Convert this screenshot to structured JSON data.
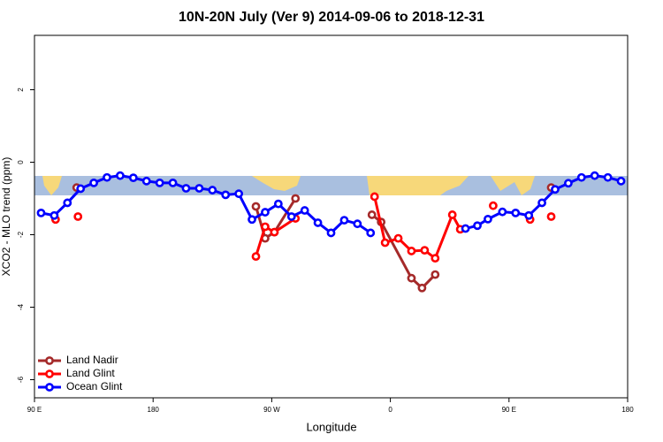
{
  "chart_data": {
    "type": "line",
    "title": "10N-20N July (Ver 9)   2014-09-06 to 2018-12-31",
    "x_label": "Longitude",
    "y_label": "XCO2 - MLO trend (ppm)",
    "xlim": [
      90,
      540
    ],
    "xticks": [
      {
        "value": 90,
        "label": "90 E"
      },
      180,
      {
        "value": 270,
        "label": "90 W"
      },
      {
        "value": 360,
        "label": "0"
      },
      {
        "value": 450,
        "label": "90 E"
      },
      180
    ],
    "ylim": [
      -6.5,
      3.5
    ],
    "yticks": [
      -6,
      -4,
      -2,
      0,
      2
    ],
    "legend": "bottom-left",
    "series": [
      {
        "name": "Land Nadir",
        "color": "#a52a2a",
        "x": [
          122,
          null,
          258,
          265,
          272,
          288,
          null,
          346,
          353,
          376,
          384,
          394,
          null,
          482
        ],
        "values": [
          -0.7,
          null,
          -1.22,
          -2.1,
          -1.93,
          -1.0,
          null,
          -1.45,
          -1.65,
          -3.2,
          -3.47,
          -3.1,
          null,
          -0.7
        ]
      },
      {
        "name": "Land Glint",
        "color": "#ff0000",
        "x": [
          106,
          null,
          123,
          null,
          258,
          265,
          272,
          288,
          null,
          348,
          356,
          366,
          376,
          386,
          394,
          407,
          413,
          null,
          438,
          null,
          466,
          null,
          482
        ],
        "values": [
          -1.58,
          null,
          -1.5,
          null,
          -2.6,
          -1.78,
          -1.93,
          -1.55,
          null,
          -0.95,
          -2.22,
          -2.1,
          -2.45,
          -2.43,
          -2.65,
          -1.45,
          -1.85,
          null,
          -1.2,
          null,
          -1.58,
          null,
          -1.5
        ]
      },
      {
        "name": "Ocean Glint",
        "color": "#0000ff",
        "x": [
          95,
          105,
          115,
          125,
          135,
          145,
          155,
          165,
          175,
          185,
          195,
          205,
          215,
          225,
          235,
          245,
          255,
          265,
          275,
          285,
          295,
          305,
          315,
          325,
          335,
          345,
          null,
          417,
          426,
          434,
          445,
          455,
          465,
          475,
          485,
          495,
          505,
          515,
          525,
          535
        ],
        "values": [
          -1.4,
          -1.47,
          -1.12,
          -0.73,
          -0.57,
          -0.42,
          -0.37,
          -0.43,
          -0.52,
          -0.57,
          -0.57,
          -0.72,
          -0.72,
          -0.77,
          -0.9,
          -0.87,
          -1.58,
          -1.38,
          -1.15,
          -1.5,
          -1.33,
          -1.67,
          -1.95,
          -1.6,
          -1.7,
          -1.95,
          null,
          -1.83,
          -1.75,
          -1.57,
          -1.37,
          -1.4,
          -1.47,
          -1.12,
          -0.75,
          -0.58,
          -0.42,
          -0.37,
          -0.42,
          -0.52
        ]
      }
    ]
  }
}
